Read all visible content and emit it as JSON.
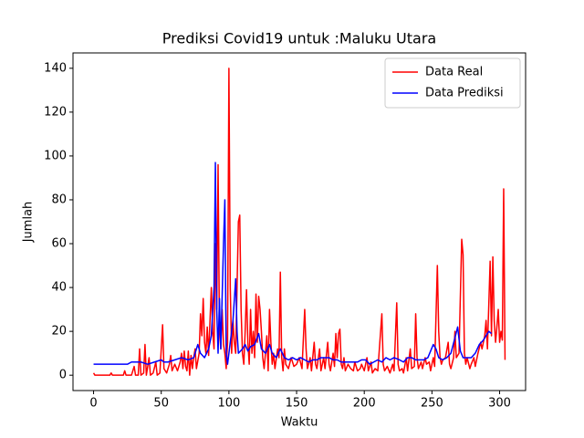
{
  "chart_data": {
    "type": "line",
    "title": "Prediksi Covid19 untuk :Maluku Utara",
    "xlabel": "Waktu",
    "ylabel": "Jumlah",
    "xlim": [
      -15.2,
      319.2
    ],
    "ylim": [
      -7,
      147
    ],
    "xticks": [
      0,
      50,
      100,
      150,
      200,
      250,
      300
    ],
    "yticks": [
      0,
      20,
      40,
      60,
      80,
      100,
      120,
      140
    ],
    "legend": "upper right",
    "grid": false,
    "series": [
      {
        "name": "Data Real",
        "color": "#ff0000",
        "x": [
          0,
          1,
          12,
          13,
          14,
          22,
          23,
          24,
          28,
          30,
          31,
          33,
          34,
          35,
          37,
          38,
          39,
          41,
          42,
          44,
          46,
          47,
          49,
          51,
          52,
          54,
          56,
          57,
          58,
          60,
          62,
          64,
          65,
          66,
          67,
          68,
          69,
          70,
          71,
          72,
          73,
          74,
          75,
          76,
          78,
          79,
          80,
          81,
          82,
          83,
          84,
          85,
          87,
          88,
          89,
          90,
          91,
          92,
          93,
          94,
          95,
          96,
          97,
          98,
          99,
          100,
          101,
          102,
          103,
          104,
          105,
          107,
          108,
          109,
          110,
          111,
          112,
          113,
          114,
          115,
          116,
          117,
          118,
          119,
          120,
          121,
          122,
          123,
          124,
          125,
          126,
          127,
          128,
          129,
          130,
          131,
          132,
          133,
          134,
          136,
          137,
          138,
          139,
          140,
          141,
          142,
          144,
          146,
          148,
          150,
          152,
          154,
          156,
          157,
          158,
          160,
          161,
          163,
          164,
          165,
          167,
          168,
          170,
          171,
          173,
          174,
          175,
          177,
          178,
          179,
          180,
          181,
          182,
          183,
          184,
          185,
          186,
          188,
          190,
          192,
          193,
          195,
          197,
          198,
          200,
          202,
          203,
          205,
          206,
          208,
          210,
          213,
          214,
          215,
          217,
          219,
          221,
          222,
          224,
          225,
          226,
          228,
          229,
          231,
          232,
          234,
          235,
          237,
          238,
          239,
          240,
          242,
          243,
          245,
          246,
          248,
          249,
          251,
          252,
          254,
          255,
          256,
          257,
          258,
          260,
          262,
          263,
          264,
          266,
          267,
          268,
          270,
          272,
          273,
          274,
          275,
          276,
          278,
          279,
          281,
          282,
          284,
          286,
          287,
          289,
          290,
          291,
          293,
          294,
          295,
          296,
          297,
          298,
          299,
          300,
          301,
          302,
          303,
          304
        ],
        "values": [
          1,
          0,
          0,
          1,
          0,
          0,
          2,
          0,
          0,
          4,
          0,
          0,
          12,
          0,
          1,
          14,
          0,
          8,
          0,
          1,
          6,
          0,
          1,
          23,
          3,
          1,
          5,
          9,
          2,
          5,
          2,
          6,
          10,
          3,
          11,
          4,
          2,
          11,
          0,
          9,
          3,
          8,
          12,
          3,
          10,
          28,
          18,
          35,
          15,
          10,
          22,
          9,
          40,
          20,
          12,
          60,
          30,
          96,
          20,
          12,
          30,
          14,
          10,
          3,
          15,
          140,
          40,
          10,
          25,
          15,
          10,
          70,
          73,
          30,
          10,
          5,
          20,
          39,
          15,
          5,
          30,
          10,
          20,
          8,
          37,
          15,
          36,
          30,
          20,
          8,
          3,
          10,
          18,
          2,
          30,
          15,
          5,
          10,
          3,
          12,
          8,
          47,
          8,
          2,
          12,
          5,
          3,
          8,
          4,
          5,
          8,
          3,
          30,
          12,
          3,
          8,
          2,
          15,
          5,
          3,
          12,
          2,
          8,
          3,
          15,
          5,
          2,
          10,
          4,
          19,
          8,
          19,
          21,
          5,
          3,
          8,
          2,
          5,
          3,
          2,
          6,
          2,
          3,
          5,
          2,
          8,
          2,
          6,
          1,
          3,
          2,
          28,
          5,
          2,
          4,
          1,
          5,
          2,
          33,
          5,
          2,
          3,
          1,
          8,
          2,
          12,
          3,
          4,
          28,
          8,
          3,
          6,
          3,
          8,
          5,
          6,
          2,
          8,
          4,
          50,
          20,
          8,
          5,
          7,
          8,
          15,
          5,
          3,
          8,
          20,
          8,
          10,
          62,
          55,
          10,
          5,
          8,
          3,
          5,
          8,
          4,
          10,
          15,
          12,
          18,
          25,
          12,
          52,
          18,
          54,
          25,
          15,
          22,
          30,
          15,
          20,
          16,
          85,
          7
        ]
      },
      {
        "name": "Data Prediksi",
        "color": "#0000ff",
        "x": [
          0,
          25,
          28,
          35,
          40,
          45,
          50,
          52,
          55,
          60,
          65,
          70,
          74,
          77,
          79,
          82,
          85,
          87,
          89,
          90,
          91,
          92,
          93,
          94,
          96,
          97,
          98,
          99,
          101,
          103,
          105,
          106,
          107,
          110,
          112,
          114,
          116,
          119,
          122,
          124,
          127,
          130,
          132,
          135,
          138,
          141,
          144,
          147,
          150,
          153,
          156,
          159,
          162,
          165,
          168,
          171,
          174,
          177,
          180,
          183,
          186,
          189,
          192,
          195,
          198,
          201,
          204,
          207,
          210,
          213,
          216,
          219,
          222,
          226,
          229,
          232,
          235,
          238,
          241,
          244,
          247,
          251,
          253,
          255,
          258,
          261,
          264,
          267,
          269,
          271,
          273,
          276,
          279,
          282,
          285,
          288,
          290,
          292,
          294
        ],
        "values": [
          5,
          5,
          6,
          6,
          5,
          6,
          7,
          6,
          6,
          7,
          8,
          7,
          8,
          14,
          10,
          8,
          12,
          18,
          40,
          97,
          30,
          10,
          35,
          12,
          60,
          80,
          10,
          5,
          15,
          25,
          44,
          20,
          10,
          12,
          14,
          11,
          13,
          14,
          19,
          12,
          10,
          14,
          10,
          8,
          12,
          8,
          7,
          8,
          7,
          8,
          7,
          6,
          7,
          7,
          8,
          8,
          8,
          7,
          7,
          6,
          6,
          6,
          6,
          6,
          7,
          7,
          5,
          6,
          7,
          6,
          8,
          7,
          8,
          7,
          6,
          8,
          8,
          7,
          7,
          7,
          8,
          14,
          12,
          8,
          7,
          8,
          10,
          17,
          22,
          11,
          8,
          8,
          8,
          10,
          14,
          16,
          18,
          20,
          19
        ]
      }
    ]
  }
}
